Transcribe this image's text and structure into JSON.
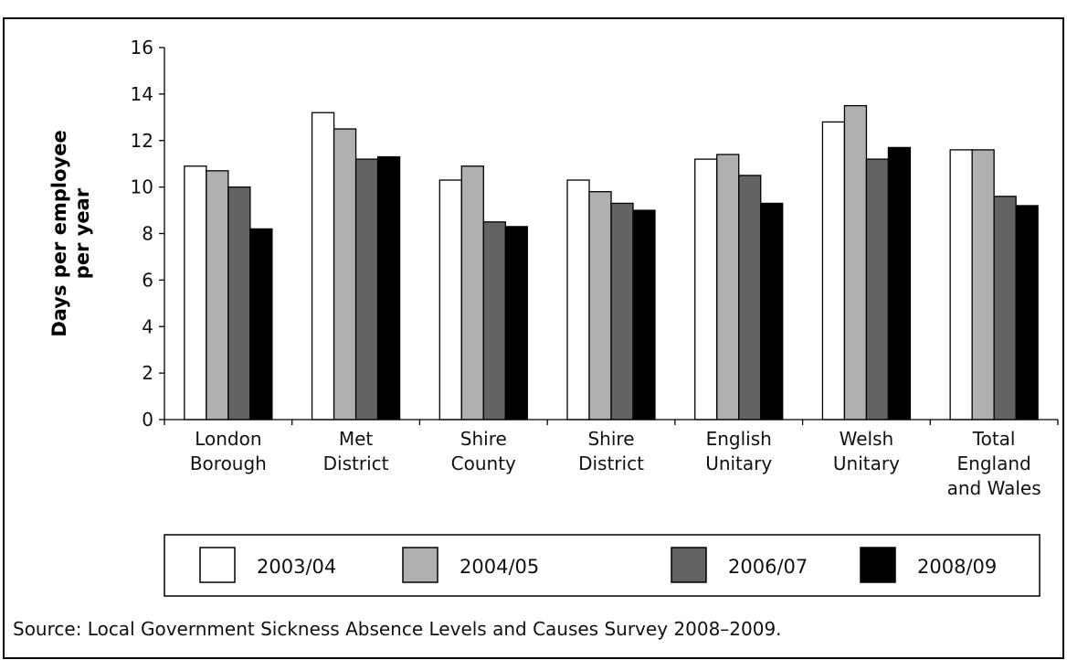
{
  "chart_data": {
    "type": "bar",
    "title": "",
    "xlabel": "",
    "ylabel": "Days per employee per year",
    "ylabel_lines": [
      "Days per employee",
      "per year"
    ],
    "ylim": [
      0,
      16
    ],
    "yticks": [
      0,
      2,
      4,
      6,
      8,
      10,
      12,
      14,
      16
    ],
    "grid": false,
    "legend_position": "bottom",
    "categories": [
      [
        "London",
        "Borough"
      ],
      [
        "Met",
        "District"
      ],
      [
        "Shire",
        "County"
      ],
      [
        "Shire",
        "District"
      ],
      [
        "English",
        "Unitary"
      ],
      [
        "Welsh",
        "Unitary"
      ],
      [
        "Total",
        "England",
        "and Wales"
      ]
    ],
    "series": [
      {
        "name": "2003/04",
        "color": "#ffffff",
        "values": [
          10.9,
          13.2,
          10.3,
          10.3,
          11.2,
          12.8,
          11.6
        ]
      },
      {
        "name": "2004/05",
        "color": "#b0b0b0",
        "values": [
          10.7,
          12.5,
          10.9,
          9.8,
          11.4,
          13.5,
          11.6
        ]
      },
      {
        "name": "2006/07",
        "color": "#636363",
        "values": [
          10.0,
          11.2,
          8.5,
          9.3,
          10.5,
          11.2,
          9.6
        ]
      },
      {
        "name": "2008/09",
        "color": "#000000",
        "values": [
          8.2,
          11.3,
          8.3,
          9.0,
          9.3,
          11.7,
          9.2
        ]
      }
    ]
  },
  "source_text": "Source: Local Government Sickness Absence Levels and Causes Survey 2008–2009."
}
